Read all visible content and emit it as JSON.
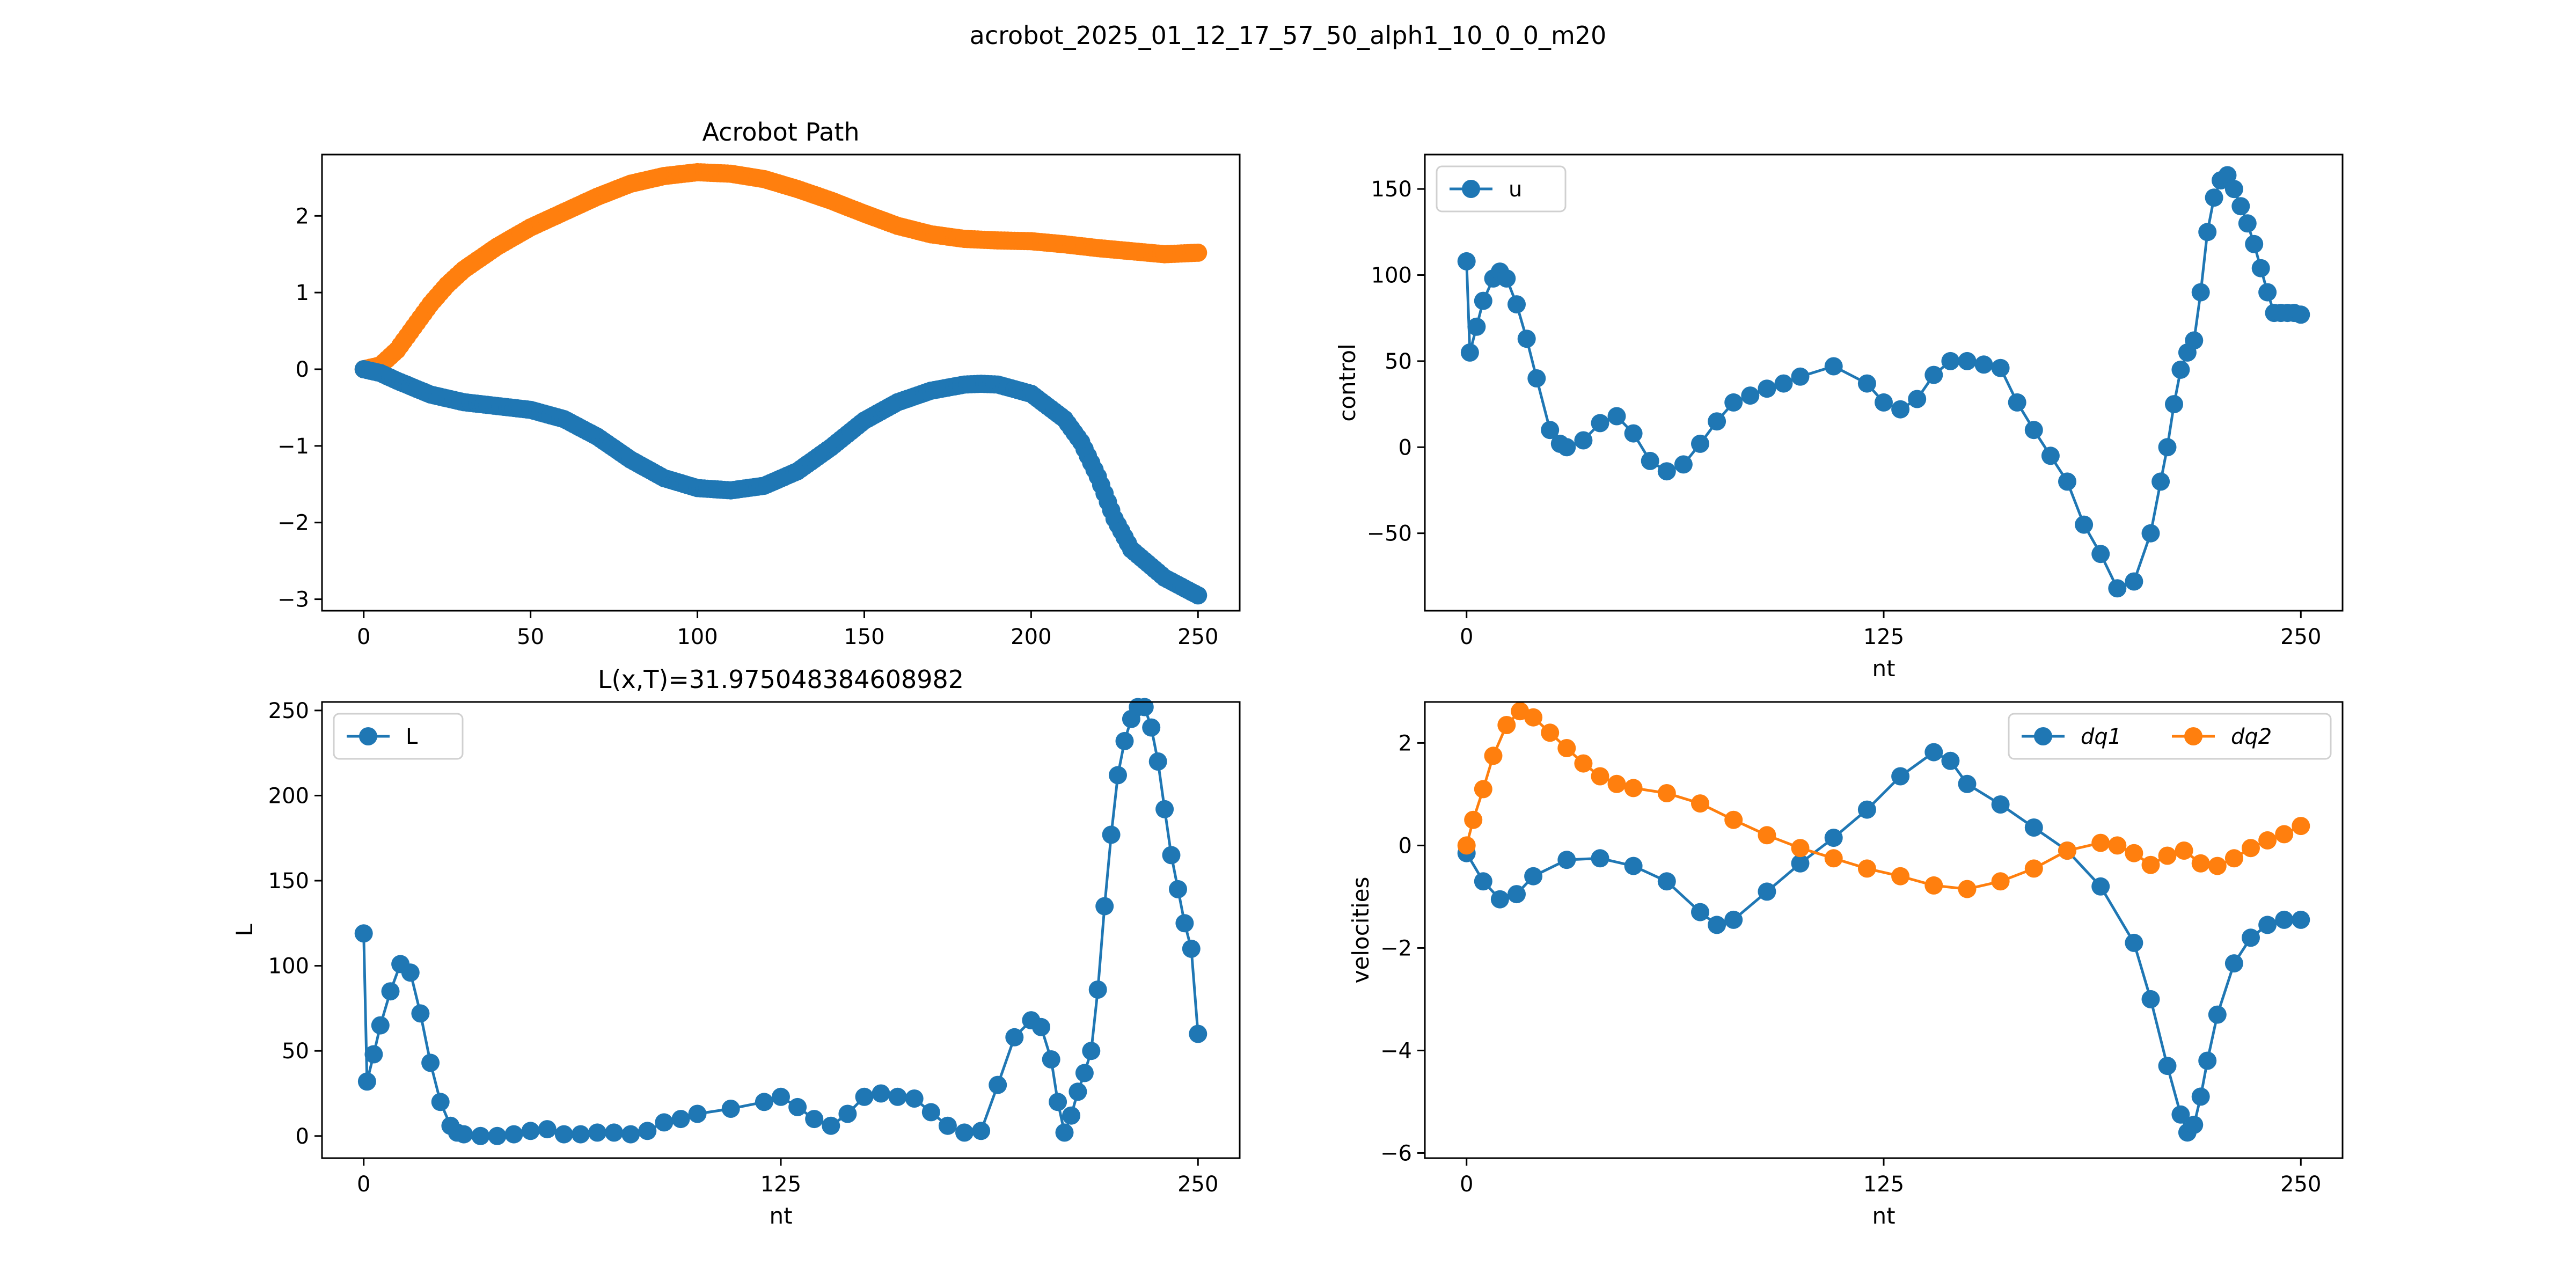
{
  "figure": {
    "suptitle": "acrobot_2025_01_12_17_57_50_alph1_10_0_0_m20"
  },
  "colors": {
    "blue": "#1f77b4",
    "orange": "#ff7f0e"
  },
  "chart_data": [
    {
      "id": "path",
      "type": "scatter",
      "title": "Acrobot Path",
      "xlabel": "",
      "ylabel": "",
      "xlim": [
        -12.5,
        262.5
      ],
      "ylim": [
        -3.15,
        2.8
      ],
      "xticks": [
        0,
        50,
        100,
        150,
        200,
        250
      ],
      "yticks": [
        -3,
        -2,
        -1,
        0,
        1,
        2
      ],
      "grid": false,
      "legend": null,
      "series": [
        {
          "color": "#ff7f0e",
          "x": [
            0,
            5,
            10,
            15,
            20,
            25,
            30,
            40,
            50,
            60,
            70,
            80,
            90,
            100,
            110,
            120,
            130,
            140,
            150,
            160,
            170,
            180,
            190,
            200,
            210,
            220,
            230,
            240,
            250
          ],
          "y": [
            0.0,
            0.05,
            0.25,
            0.55,
            0.85,
            1.1,
            1.3,
            1.6,
            1.85,
            2.05,
            2.25,
            2.42,
            2.52,
            2.57,
            2.55,
            2.48,
            2.35,
            2.2,
            2.03,
            1.87,
            1.76,
            1.7,
            1.68,
            1.67,
            1.63,
            1.58,
            1.54,
            1.5,
            1.52
          ]
        },
        {
          "color": "#1f77b4",
          "x": [
            0,
            5,
            10,
            20,
            30,
            40,
            50,
            60,
            70,
            80,
            90,
            100,
            110,
            120,
            130,
            140,
            150,
            160,
            170,
            180,
            185,
            190,
            200,
            210,
            215,
            220,
            225,
            230,
            240,
            250
          ],
          "y": [
            0.0,
            -0.05,
            -0.15,
            -0.33,
            -0.43,
            -0.48,
            -0.53,
            -0.65,
            -0.88,
            -1.18,
            -1.42,
            -1.55,
            -1.58,
            -1.52,
            -1.33,
            -1.02,
            -0.67,
            -0.43,
            -0.28,
            -0.2,
            -0.19,
            -0.2,
            -0.32,
            -0.65,
            -0.95,
            -1.4,
            -1.95,
            -2.35,
            -2.72,
            -2.95
          ]
        }
      ]
    },
    {
      "id": "control",
      "type": "line",
      "title": "",
      "xlabel": "nt",
      "ylabel": "control",
      "xlim": [
        -12.5,
        262.5
      ],
      "ylim": [
        -95,
        170
      ],
      "xticks": [
        0,
        125,
        250
      ],
      "yticks": [
        -50,
        0,
        50,
        100,
        150
      ],
      "grid": false,
      "legend": "upper left",
      "series": [
        {
          "name": "u",
          "color": "#1f77b4",
          "x": [
            0,
            1,
            3,
            5,
            8,
            10,
            12,
            15,
            18,
            21,
            25,
            28,
            30,
            35,
            40,
            45,
            50,
            55,
            60,
            65,
            70,
            75,
            80,
            85,
            90,
            95,
            100,
            110,
            120,
            125,
            130,
            135,
            140,
            145,
            150,
            155,
            160,
            165,
            170,
            175,
            180,
            185,
            190,
            195,
            200,
            205,
            208,
            210,
            212,
            214,
            216,
            218,
            220,
            222,
            224,
            226,
            228,
            230,
            232,
            234,
            236,
            238,
            240,
            242,
            244,
            246,
            248,
            250
          ],
          "y": [
            108,
            55,
            70,
            85,
            98,
            102,
            98,
            83,
            63,
            40,
            10,
            2,
            0,
            4,
            14,
            18,
            8,
            -8,
            -14,
            -10,
            2,
            15,
            26,
            30,
            34,
            37,
            41,
            47,
            37,
            26,
            22,
            28,
            42,
            50,
            50,
            48,
            46,
            26,
            10,
            -5,
            -20,
            -45,
            -62,
            -82,
            -78,
            -50,
            -20,
            0,
            25,
            45,
            55,
            62,
            90,
            125,
            145,
            155,
            158,
            150,
            140,
            130,
            118,
            104,
            90,
            78,
            78,
            78,
            78,
            77
          ]
        }
      ]
    },
    {
      "id": "L",
      "type": "line",
      "title": "L(x,T)=31.975048384608982",
      "xlabel": "nt",
      "ylabel": "L",
      "xlim": [
        -12.5,
        262.5
      ],
      "ylim": [
        -13,
        255
      ],
      "xticks": [
        0,
        125,
        250
      ],
      "yticks": [
        0,
        50,
        100,
        150,
        200,
        250
      ],
      "grid": false,
      "legend": "upper left",
      "series": [
        {
          "name": "L",
          "color": "#1f77b4",
          "x": [
            0,
            1,
            3,
            5,
            8,
            11,
            14,
            17,
            20,
            23,
            26,
            28,
            30,
            35,
            40,
            45,
            50,
            55,
            60,
            65,
            70,
            75,
            80,
            85,
            90,
            95,
            100,
            110,
            120,
            125,
            130,
            135,
            140,
            145,
            150,
            155,
            160,
            165,
            170,
            175,
            180,
            185,
            190,
            195,
            200,
            203,
            206,
            208,
            210,
            212,
            214,
            216,
            218,
            220,
            222,
            224,
            226,
            228,
            230,
            232,
            234,
            236,
            238,
            240,
            242,
            244,
            246,
            248,
            250
          ],
          "y": [
            119,
            32,
            48,
            65,
            85,
            101,
            96,
            72,
            43,
            20,
            6,
            2,
            1,
            0,
            0,
            1,
            3,
            4,
            1,
            1,
            2,
            2,
            1,
            3,
            8,
            10,
            13,
            16,
            20,
            23,
            17,
            10,
            6,
            13,
            23,
            25,
            23,
            22,
            14,
            6,
            2,
            3,
            30,
            58,
            68,
            64,
            45,
            20,
            2,
            12,
            26,
            37,
            50,
            86,
            135,
            177,
            212,
            232,
            245,
            252,
            252,
            240,
            220,
            192,
            165,
            145,
            125,
            110,
            60
          ]
        }
      ]
    },
    {
      "id": "velocities",
      "type": "line",
      "title": "",
      "xlabel": "nt",
      "ylabel": "velocities",
      "xlim": [
        -12.5,
        262.5
      ],
      "ylim": [
        -6.1,
        2.8
      ],
      "xticks": [
        0,
        125,
        250
      ],
      "yticks": [
        -6,
        -4,
        -2,
        0,
        2
      ],
      "grid": false,
      "legend": "upper right",
      "series": [
        {
          "name": "dq1",
          "color": "#1f77b4",
          "x": [
            0,
            5,
            10,
            15,
            20,
            30,
            40,
            50,
            60,
            70,
            75,
            80,
            90,
            100,
            110,
            120,
            130,
            140,
            145,
            150,
            160,
            170,
            180,
            190,
            200,
            205,
            210,
            214,
            216,
            218,
            220,
            222,
            225,
            230,
            235,
            240,
            245,
            250
          ],
          "y": [
            -0.15,
            -0.7,
            -1.05,
            -0.95,
            -0.6,
            -0.28,
            -0.25,
            -0.4,
            -0.7,
            -1.3,
            -1.55,
            -1.45,
            -0.9,
            -0.35,
            0.15,
            0.7,
            1.35,
            1.82,
            1.65,
            1.2,
            0.8,
            0.35,
            -0.1,
            -0.8,
            -1.9,
            -3.0,
            -4.3,
            -5.25,
            -5.6,
            -5.45,
            -4.9,
            -4.2,
            -3.3,
            -2.3,
            -1.8,
            -1.55,
            -1.45,
            -1.45
          ]
        },
        {
          "name": "dq2",
          "color": "#ff7f0e",
          "x": [
            0,
            2,
            5,
            8,
            12,
            16,
            20,
            25,
            30,
            35,
            40,
            45,
            50,
            60,
            70,
            80,
            90,
            100,
            110,
            120,
            130,
            140,
            150,
            160,
            170,
            180,
            190,
            195,
            200,
            205,
            210,
            215,
            220,
            225,
            230,
            235,
            240,
            245,
            250
          ],
          "y": [
            0.0,
            0.5,
            1.1,
            1.75,
            2.35,
            2.62,
            2.5,
            2.2,
            1.9,
            1.6,
            1.35,
            1.2,
            1.12,
            1.02,
            0.82,
            0.5,
            0.2,
            -0.05,
            -0.25,
            -0.45,
            -0.6,
            -0.78,
            -0.85,
            -0.7,
            -0.45,
            -0.1,
            0.05,
            0.0,
            -0.15,
            -0.38,
            -0.2,
            -0.1,
            -0.35,
            -0.4,
            -0.25,
            -0.05,
            0.1,
            0.22,
            0.38
          ]
        }
      ]
    }
  ]
}
